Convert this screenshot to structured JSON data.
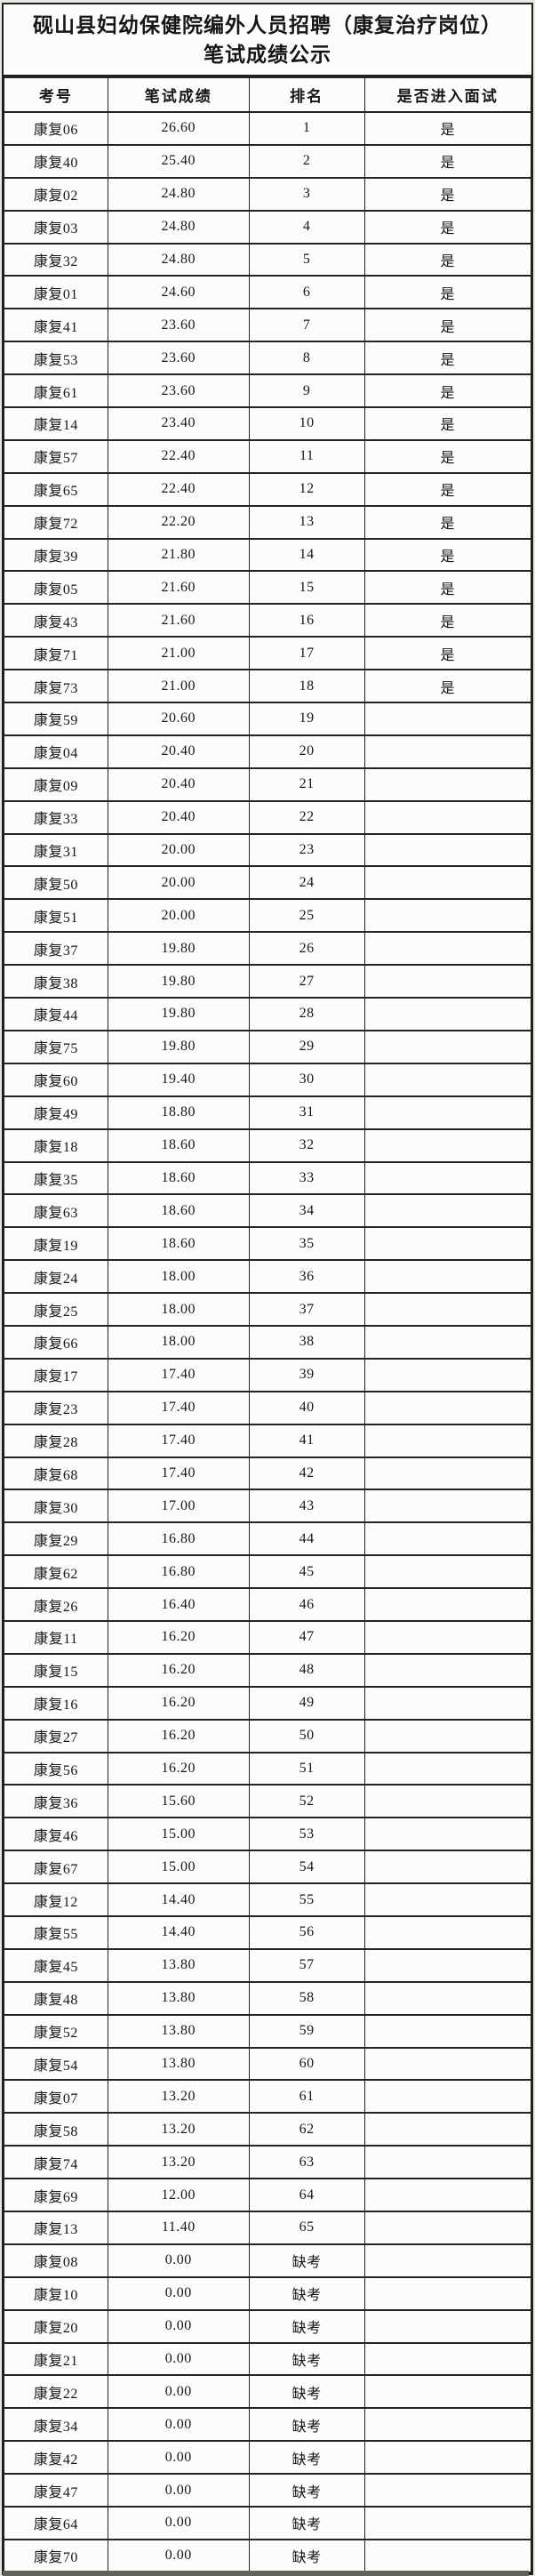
{
  "page": {
    "title_line1": "砚山县妇幼保健院编外人员招聘（康复治疗岗位）",
    "title_line2": "笔试成绩公示"
  },
  "table": {
    "columns": [
      "考号",
      "笔试成绩",
      "排名",
      "是否进入面试"
    ],
    "rows": [
      {
        "exam_no": "康复06",
        "score": "26.60",
        "rank": "1",
        "interview": "是"
      },
      {
        "exam_no": "康复40",
        "score": "25.40",
        "rank": "2",
        "interview": "是"
      },
      {
        "exam_no": "康复02",
        "score": "24.80",
        "rank": "3",
        "interview": "是"
      },
      {
        "exam_no": "康复03",
        "score": "24.80",
        "rank": "4",
        "interview": "是"
      },
      {
        "exam_no": "康复32",
        "score": "24.80",
        "rank": "5",
        "interview": "是"
      },
      {
        "exam_no": "康复01",
        "score": "24.60",
        "rank": "6",
        "interview": "是"
      },
      {
        "exam_no": "康复41",
        "score": "23.60",
        "rank": "7",
        "interview": "是"
      },
      {
        "exam_no": "康复53",
        "score": "23.60",
        "rank": "8",
        "interview": "是"
      },
      {
        "exam_no": "康复61",
        "score": "23.60",
        "rank": "9",
        "interview": "是"
      },
      {
        "exam_no": "康复14",
        "score": "23.40",
        "rank": "10",
        "interview": "是"
      },
      {
        "exam_no": "康复57",
        "score": "22.40",
        "rank": "11",
        "interview": "是"
      },
      {
        "exam_no": "康复65",
        "score": "22.40",
        "rank": "12",
        "interview": "是"
      },
      {
        "exam_no": "康复72",
        "score": "22.20",
        "rank": "13",
        "interview": "是"
      },
      {
        "exam_no": "康复39",
        "score": "21.80",
        "rank": "14",
        "interview": "是"
      },
      {
        "exam_no": "康复05",
        "score": "21.60",
        "rank": "15",
        "interview": "是"
      },
      {
        "exam_no": "康复43",
        "score": "21.60",
        "rank": "16",
        "interview": "是"
      },
      {
        "exam_no": "康复71",
        "score": "21.00",
        "rank": "17",
        "interview": "是"
      },
      {
        "exam_no": "康复73",
        "score": "21.00",
        "rank": "18",
        "interview": "是"
      },
      {
        "exam_no": "康复59",
        "score": "20.60",
        "rank": "19",
        "interview": ""
      },
      {
        "exam_no": "康复04",
        "score": "20.40",
        "rank": "20",
        "interview": ""
      },
      {
        "exam_no": "康复09",
        "score": "20.40",
        "rank": "21",
        "interview": ""
      },
      {
        "exam_no": "康复33",
        "score": "20.40",
        "rank": "22",
        "interview": ""
      },
      {
        "exam_no": "康复31",
        "score": "20.00",
        "rank": "23",
        "interview": ""
      },
      {
        "exam_no": "康复50",
        "score": "20.00",
        "rank": "24",
        "interview": ""
      },
      {
        "exam_no": "康复51",
        "score": "20.00",
        "rank": "25",
        "interview": ""
      },
      {
        "exam_no": "康复37",
        "score": "19.80",
        "rank": "26",
        "interview": ""
      },
      {
        "exam_no": "康复38",
        "score": "19.80",
        "rank": "27",
        "interview": ""
      },
      {
        "exam_no": "康复44",
        "score": "19.80",
        "rank": "28",
        "interview": ""
      },
      {
        "exam_no": "康复75",
        "score": "19.80",
        "rank": "29",
        "interview": ""
      },
      {
        "exam_no": "康复60",
        "score": "19.40",
        "rank": "30",
        "interview": ""
      },
      {
        "exam_no": "康复49",
        "score": "18.80",
        "rank": "31",
        "interview": ""
      },
      {
        "exam_no": "康复18",
        "score": "18.60",
        "rank": "32",
        "interview": ""
      },
      {
        "exam_no": "康复35",
        "score": "18.60",
        "rank": "33",
        "interview": ""
      },
      {
        "exam_no": "康复63",
        "score": "18.60",
        "rank": "34",
        "interview": ""
      },
      {
        "exam_no": "康复19",
        "score": "18.60",
        "rank": "35",
        "interview": ""
      },
      {
        "exam_no": "康复24",
        "score": "18.00",
        "rank": "36",
        "interview": ""
      },
      {
        "exam_no": "康复25",
        "score": "18.00",
        "rank": "37",
        "interview": ""
      },
      {
        "exam_no": "康复66",
        "score": "18.00",
        "rank": "38",
        "interview": ""
      },
      {
        "exam_no": "康复17",
        "score": "17.40",
        "rank": "39",
        "interview": ""
      },
      {
        "exam_no": "康复23",
        "score": "17.40",
        "rank": "40",
        "interview": ""
      },
      {
        "exam_no": "康复28",
        "score": "17.40",
        "rank": "41",
        "interview": ""
      },
      {
        "exam_no": "康复68",
        "score": "17.40",
        "rank": "42",
        "interview": ""
      },
      {
        "exam_no": "康复30",
        "score": "17.00",
        "rank": "43",
        "interview": ""
      },
      {
        "exam_no": "康复29",
        "score": "16.80",
        "rank": "44",
        "interview": ""
      },
      {
        "exam_no": "康复62",
        "score": "16.80",
        "rank": "45",
        "interview": ""
      },
      {
        "exam_no": "康复26",
        "score": "16.40",
        "rank": "46",
        "interview": ""
      },
      {
        "exam_no": "康复11",
        "score": "16.20",
        "rank": "47",
        "interview": ""
      },
      {
        "exam_no": "康复15",
        "score": "16.20",
        "rank": "48",
        "interview": ""
      },
      {
        "exam_no": "康复16",
        "score": "16.20",
        "rank": "49",
        "interview": ""
      },
      {
        "exam_no": "康复27",
        "score": "16.20",
        "rank": "50",
        "interview": ""
      },
      {
        "exam_no": "康复56",
        "score": "16.20",
        "rank": "51",
        "interview": ""
      },
      {
        "exam_no": "康复36",
        "score": "15.60",
        "rank": "52",
        "interview": ""
      },
      {
        "exam_no": "康复46",
        "score": "15.00",
        "rank": "53",
        "interview": ""
      },
      {
        "exam_no": "康复67",
        "score": "15.00",
        "rank": "54",
        "interview": ""
      },
      {
        "exam_no": "康复12",
        "score": "14.40",
        "rank": "55",
        "interview": ""
      },
      {
        "exam_no": "康复55",
        "score": "14.40",
        "rank": "56",
        "interview": ""
      },
      {
        "exam_no": "康复45",
        "score": "13.80",
        "rank": "57",
        "interview": ""
      },
      {
        "exam_no": "康复48",
        "score": "13.80",
        "rank": "58",
        "interview": ""
      },
      {
        "exam_no": "康复52",
        "score": "13.80",
        "rank": "59",
        "interview": ""
      },
      {
        "exam_no": "康复54",
        "score": "13.80",
        "rank": "60",
        "interview": ""
      },
      {
        "exam_no": "康复07",
        "score": "13.20",
        "rank": "61",
        "interview": ""
      },
      {
        "exam_no": "康复58",
        "score": "13.20",
        "rank": "62",
        "interview": ""
      },
      {
        "exam_no": "康复74",
        "score": "13.20",
        "rank": "63",
        "interview": ""
      },
      {
        "exam_no": "康复69",
        "score": "12.00",
        "rank": "64",
        "interview": ""
      },
      {
        "exam_no": "康复13",
        "score": "11.40",
        "rank": "65",
        "interview": ""
      },
      {
        "exam_no": "康复08",
        "score": "0.00",
        "rank": "缺考",
        "interview": ""
      },
      {
        "exam_no": "康复10",
        "score": "0.00",
        "rank": "缺考",
        "interview": ""
      },
      {
        "exam_no": "康复20",
        "score": "0.00",
        "rank": "缺考",
        "interview": ""
      },
      {
        "exam_no": "康复21",
        "score": "0.00",
        "rank": "缺考",
        "interview": ""
      },
      {
        "exam_no": "康复22",
        "score": "0.00",
        "rank": "缺考",
        "interview": ""
      },
      {
        "exam_no": "康复34",
        "score": "0.00",
        "rank": "缺考",
        "interview": ""
      },
      {
        "exam_no": "康复42",
        "score": "0.00",
        "rank": "缺考",
        "interview": ""
      },
      {
        "exam_no": "康复47",
        "score": "0.00",
        "rank": "缺考",
        "interview": ""
      },
      {
        "exam_no": "康复64",
        "score": "0.00",
        "rank": "缺考",
        "interview": ""
      },
      {
        "exam_no": "康复70",
        "score": "0.00",
        "rank": "缺考",
        "interview": ""
      }
    ]
  },
  "colors": {
    "border": "#242424",
    "paper": "#fcfcfa",
    "page_margin": "#e9e7e4",
    "bottom_bar": "#63615e"
  }
}
